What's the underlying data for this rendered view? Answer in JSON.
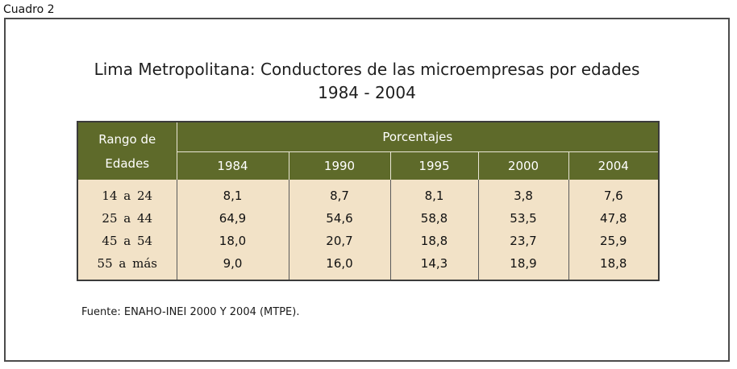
{
  "caption": "Cuadro 2",
  "title_line1": "Lima Metropolitana: Conductores de las microempresas por edades",
  "title_line2": "1984 - 2004",
  "table": {
    "header_range_line1": "Rango de",
    "header_range_line2": "Edades",
    "header_group": "Porcentajes",
    "years": [
      "1984",
      "1990",
      "1995",
      "2000",
      "2004"
    ],
    "rows": [
      {
        "range": "14 a 24",
        "values": [
          "8,1",
          "8,7",
          "8,1",
          "3,8",
          "7,6"
        ]
      },
      {
        "range": "25 a 44",
        "values": [
          "64,9",
          "54,6",
          "58,8",
          "53,5",
          "47,8"
        ]
      },
      {
        "range": "45 a 54",
        "values": [
          "18,0",
          "20,7",
          "18,8",
          "23,7",
          "25,9"
        ]
      },
      {
        "range": "55 a más",
        "values": [
          "9,0",
          "16,0",
          "14,3",
          "18,9",
          "18,8"
        ]
      }
    ]
  },
  "source": "Fuente: ENAHO-INEI 2000 Y 2004 (MTPE).",
  "colors": {
    "header_background": "#5e6a2a",
    "body_background": "#f2e2c7"
  }
}
